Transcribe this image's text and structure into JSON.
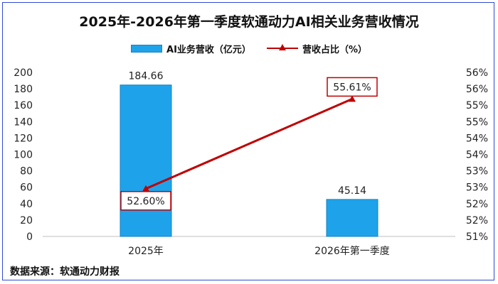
{
  "title": "2025年-2026年第一季度软通动力AI相关业务营收情况",
  "source": "数据来源：软通动力财报",
  "legend": {
    "bar_label": "AI业务营收（亿元）",
    "line_label": "营收占比（%）"
  },
  "colors": {
    "bar": "#1ea3ea",
    "bar_edge": "#1583c4",
    "line": "#c00000",
    "frame": "#2e4bd6"
  },
  "chart_data": {
    "type": "bar",
    "categories": [
      "2025年",
      "2026年第一季度"
    ],
    "series": [
      {
        "name": "AI业务营收（亿元）",
        "type": "bar",
        "axis": "left",
        "values": [
          184.66,
          45.14
        ],
        "labels": [
          "184.66",
          "45.14"
        ]
      },
      {
        "name": "营收占比（%）",
        "type": "line",
        "axis": "right",
        "values": [
          52.6,
          55.61
        ],
        "labels": [
          "52.60%",
          "55.61%"
        ]
      }
    ],
    "y_left": {
      "min": 0,
      "max": 200,
      "ticks": [
        "0",
        "20",
        "40",
        "60",
        "80",
        "100",
        "120",
        "140",
        "160",
        "180",
        "200"
      ]
    },
    "y_right": {
      "min": 51,
      "max": 56.5,
      "ticks": [
        "51%",
        "52%",
        "52%",
        "53%",
        "53%",
        "54%",
        "54%",
        "55%",
        "55%",
        "56%",
        "56%"
      ]
    },
    "grid": false,
    "legend_position": "top"
  }
}
